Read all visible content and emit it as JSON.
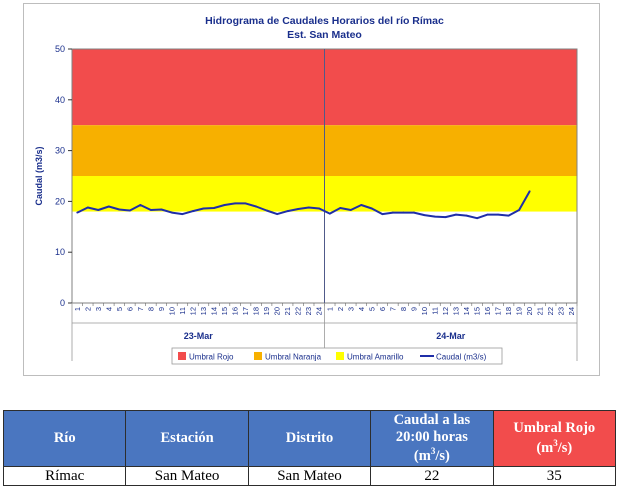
{
  "chart_data": {
    "type": "line",
    "title": "Hidrograma de Caudales Horarios del río Rímac",
    "subtitle": "Est. San Mateo",
    "ylabel": "Caudal  (m3/s)",
    "ylim": [
      0,
      50
    ],
    "yticks": [
      0,
      10,
      20,
      30,
      40,
      50
    ],
    "grid": false,
    "legend_position": "bottom",
    "dates": [
      "23-Mar",
      "24-Mar"
    ],
    "hour_labels": [
      "1",
      "2",
      "3",
      "4",
      "5",
      "6",
      "7",
      "8",
      "9",
      "10",
      "11",
      "12",
      "13",
      "14",
      "15",
      "16",
      "17",
      "18",
      "19",
      "20",
      "21",
      "22",
      "23",
      "24"
    ],
    "thresholds": [
      {
        "name": "Umbral Rojo",
        "from": 35,
        "to": 50,
        "color": "#f24c4c"
      },
      {
        "name": "Umbral Naranja",
        "from": 25,
        "to": 35,
        "color": "#f7b000"
      },
      {
        "name": "Umbral Amarillo",
        "from": 18,
        "to": 25,
        "color": "#ffff00"
      }
    ],
    "series": [
      {
        "name": "Caudal (m3/s)",
        "color": "#1f2ea8",
        "x": [
          "23-Mar 01:00",
          "23-Mar 02:00",
          "23-Mar 03:00",
          "23-Mar 04:00",
          "23-Mar 05:00",
          "23-Mar 06:00",
          "23-Mar 07:00",
          "23-Mar 08:00",
          "23-Mar 09:00",
          "23-Mar 10:00",
          "23-Mar 11:00",
          "23-Mar 12:00",
          "23-Mar 13:00",
          "23-Mar 14:00",
          "23-Mar 15:00",
          "23-Mar 16:00",
          "23-Mar 17:00",
          "23-Mar 18:00",
          "23-Mar 19:00",
          "23-Mar 20:00",
          "23-Mar 21:00",
          "23-Mar 22:00",
          "23-Mar 23:00",
          "23-Mar 24:00",
          "24-Mar 01:00",
          "24-Mar 02:00",
          "24-Mar 03:00",
          "24-Mar 04:00",
          "24-Mar 05:00",
          "24-Mar 06:00",
          "24-Mar 07:00",
          "24-Mar 08:00",
          "24-Mar 09:00",
          "24-Mar 10:00",
          "24-Mar 11:00",
          "24-Mar 12:00",
          "24-Mar 13:00",
          "24-Mar 14:00",
          "24-Mar 15:00",
          "24-Mar 16:00",
          "24-Mar 17:00",
          "24-Mar 18:00",
          "24-Mar 19:00",
          "24-Mar 20:00"
        ],
        "values": [
          17.8,
          18.8,
          18.3,
          19.0,
          18.4,
          18.2,
          19.3,
          18.3,
          18.4,
          17.8,
          17.5,
          18.1,
          18.6,
          18.7,
          19.3,
          19.6,
          19.6,
          19.0,
          18.2,
          17.5,
          18.1,
          18.5,
          18.8,
          18.6,
          17.6,
          18.7,
          18.3,
          19.3,
          18.6,
          17.5,
          17.8,
          17.8,
          17.8,
          17.3,
          17.0,
          16.9,
          17.4,
          17.2,
          16.7,
          17.4,
          17.4,
          17.2,
          18.3,
          22.0
        ]
      }
    ]
  },
  "table": {
    "headers": {
      "rio": "Río",
      "estacion": "Estación",
      "distrito": "Distrito",
      "caudal_line1": "Caudal a las",
      "caudal_line2": "20:00 horas",
      "caudal_unit_pre": "(m",
      "caudal_unit_exp": "3",
      "caudal_unit_post": "/s)",
      "umbral_line1": "Umbral Rojo",
      "umbral_unit_pre": "(m",
      "umbral_unit_exp": "3",
      "umbral_unit_post": "/s)"
    },
    "row": {
      "rio": "Rímac",
      "estacion": "San Mateo",
      "distrito": "San Mateo",
      "caudal": "22",
      "umbral_rojo": "35"
    }
  }
}
